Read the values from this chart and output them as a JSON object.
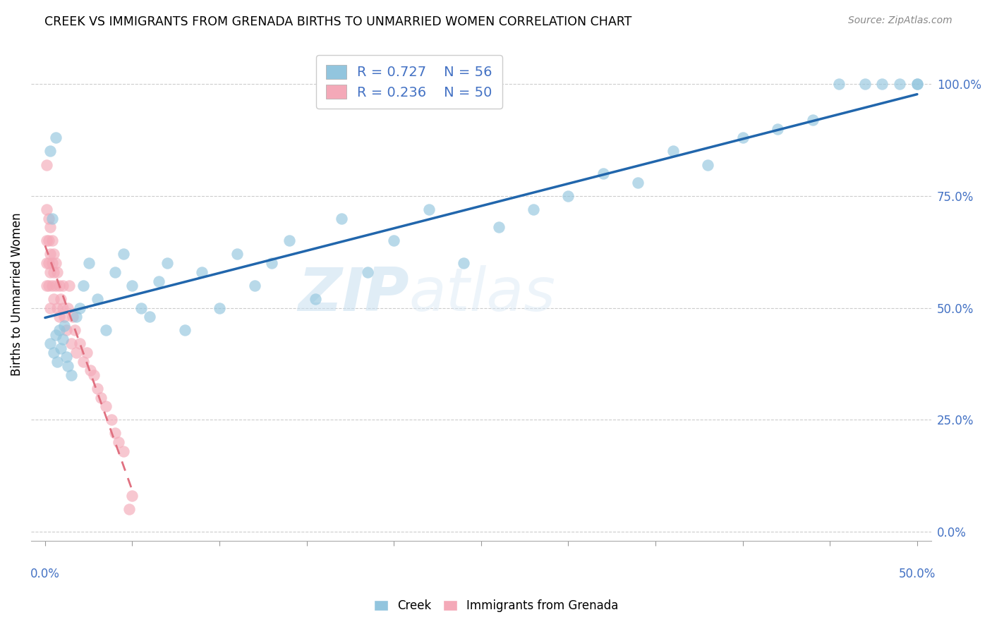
{
  "title": "CREEK VS IMMIGRANTS FROM GRENADA BIRTHS TO UNMARRIED WOMEN CORRELATION CHART",
  "source": "Source: ZipAtlas.com",
  "ylabel": "Births to Unmarried Women",
  "right_yticks": [
    "0.0%",
    "25.0%",
    "50.0%",
    "75.0%",
    "100.0%"
  ],
  "right_ytick_vals": [
    0.0,
    0.25,
    0.5,
    0.75,
    1.0
  ],
  "creek_R": 0.727,
  "creek_N": 56,
  "grenada_R": 0.236,
  "grenada_N": 50,
  "creek_color": "#92c5de",
  "grenada_color": "#f4a9b8",
  "creek_line_color": "#2166ac",
  "grenada_line_color": "#e07080",
  "watermark_zip": "ZIP",
  "watermark_atlas": "atlas",
  "xlim": [
    0.0,
    0.5
  ],
  "ylim": [
    0.0,
    1.05
  ],
  "creek_x": [
    0.003,
    0.005,
    0.006,
    0.007,
    0.008,
    0.009,
    0.01,
    0.011,
    0.012,
    0.013,
    0.015,
    0.018,
    0.02,
    0.022,
    0.025,
    0.03,
    0.035,
    0.04,
    0.045,
    0.05,
    0.055,
    0.06,
    0.065,
    0.07,
    0.08,
    0.09,
    0.1,
    0.11,
    0.12,
    0.13,
    0.14,
    0.155,
    0.17,
    0.185,
    0.2,
    0.22,
    0.24,
    0.26,
    0.28,
    0.3,
    0.32,
    0.34,
    0.36,
    0.38,
    0.4,
    0.42,
    0.44,
    0.003,
    0.004,
    0.006,
    0.455,
    0.47,
    0.48,
    0.49,
    0.5,
    0.5
  ],
  "creek_y": [
    0.42,
    0.4,
    0.44,
    0.38,
    0.45,
    0.41,
    0.43,
    0.46,
    0.39,
    0.37,
    0.35,
    0.48,
    0.5,
    0.55,
    0.6,
    0.52,
    0.45,
    0.58,
    0.62,
    0.55,
    0.5,
    0.48,
    0.56,
    0.6,
    0.45,
    0.58,
    0.5,
    0.62,
    0.55,
    0.6,
    0.65,
    0.52,
    0.7,
    0.58,
    0.65,
    0.72,
    0.6,
    0.68,
    0.72,
    0.75,
    0.8,
    0.78,
    0.85,
    0.82,
    0.88,
    0.9,
    0.92,
    0.85,
    0.7,
    0.88,
    1.0,
    1.0,
    1.0,
    1.0,
    1.0,
    1.0
  ],
  "grenada_x": [
    0.001,
    0.001,
    0.001,
    0.001,
    0.001,
    0.002,
    0.002,
    0.002,
    0.002,
    0.003,
    0.003,
    0.003,
    0.003,
    0.004,
    0.004,
    0.004,
    0.005,
    0.005,
    0.005,
    0.006,
    0.006,
    0.007,
    0.007,
    0.008,
    0.008,
    0.009,
    0.01,
    0.01,
    0.011,
    0.012,
    0.013,
    0.014,
    0.015,
    0.016,
    0.017,
    0.018,
    0.02,
    0.022,
    0.024,
    0.026,
    0.028,
    0.03,
    0.032,
    0.035,
    0.038,
    0.04,
    0.042,
    0.045,
    0.048,
    0.05
  ],
  "grenada_y": [
    0.82,
    0.72,
    0.65,
    0.6,
    0.55,
    0.7,
    0.65,
    0.6,
    0.55,
    0.68,
    0.62,
    0.58,
    0.5,
    0.65,
    0.6,
    0.55,
    0.62,
    0.58,
    0.52,
    0.6,
    0.55,
    0.58,
    0.5,
    0.55,
    0.48,
    0.52,
    0.5,
    0.55,
    0.48,
    0.45,
    0.5,
    0.55,
    0.42,
    0.48,
    0.45,
    0.4,
    0.42,
    0.38,
    0.4,
    0.36,
    0.35,
    0.32,
    0.3,
    0.28,
    0.25,
    0.22,
    0.2,
    0.18,
    0.05,
    0.08
  ]
}
